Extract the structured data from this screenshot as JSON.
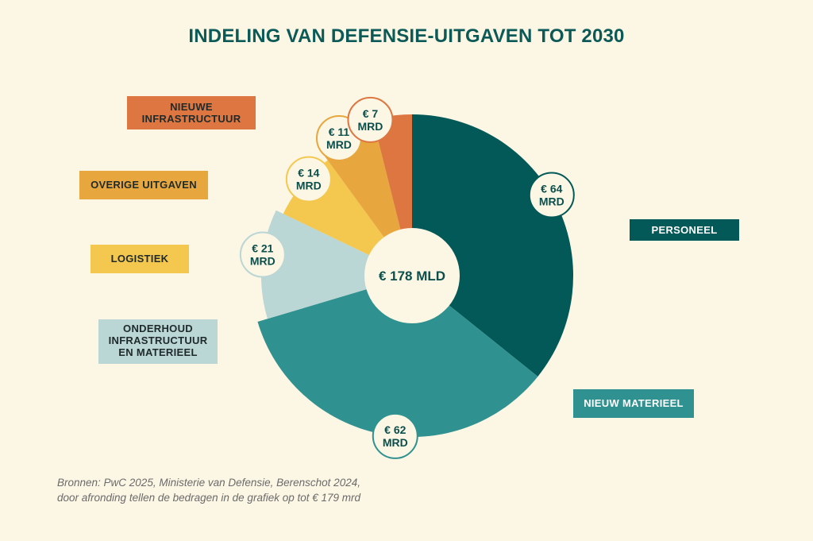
{
  "title": "INDELING VAN DEFENSIE-UITGAVEN TOT 2030",
  "chart_data": {
    "type": "pie",
    "title": "INDELING VAN DEFENSIE-UITGAVEN TOT 2030",
    "center_label": "€ 178 MLD",
    "unit": "€ mrd",
    "slices": [
      {
        "name": "PERSONEEL",
        "value": 64,
        "value_label_line1": "€ 64",
        "value_label_line2": "MRD",
        "color": "#025957",
        "text_color": "#ffffff"
      },
      {
        "name": "NIEUW MATERIEEL",
        "value": 62,
        "value_label_line1": "€ 62",
        "value_label_line2": "MRD",
        "color": "#2f9290",
        "text_color": "#ffffff"
      },
      {
        "name": "ONDERHOUD INFRASTRUCTUUR EN MATERIEEL",
        "name_lines": [
          "ONDERHOUD",
          "INFRASTRUCTUUR",
          "EN MATERIEEL"
        ],
        "value": 21,
        "value_label_line1": "€ 21",
        "value_label_line2": "MRD",
        "color": "#bad6d5",
        "text_color": "#1f2a2a"
      },
      {
        "name": "LOGISTIEK",
        "value": 14,
        "value_label_line1": "€ 14",
        "value_label_line2": "MRD",
        "color": "#f4c84f",
        "text_color": "#1f2a2a"
      },
      {
        "name": "OVERIGE UITGAVEN",
        "value": 11,
        "value_label_line1": "€ 11",
        "value_label_line2": "MRD",
        "color": "#e8a73e",
        "text_color": "#1f2a2a"
      },
      {
        "name": "NIEUWE INFRASTRUCTUUR",
        "name_lines": [
          "NIEUWE",
          "INFRASTRUCTUUR"
        ],
        "value": 7,
        "value_label_line1": "€ 7",
        "value_label_line2": "MRD",
        "color": "#dd7640",
        "text_color": "#1f2a2a"
      }
    ],
    "legend_placement": "left and right of pie"
  },
  "footnote": {
    "line1": "Bronnen: PwC 2025, Ministerie van Defensie, Berenschot 2024,",
    "line2": "door afronding tellen de bedragen in de grafiek op tot € 179 mrd"
  },
  "colors": {
    "background": "#fcf6e4",
    "title": "#0b5a57",
    "value_text": "#0b4f4c"
  }
}
